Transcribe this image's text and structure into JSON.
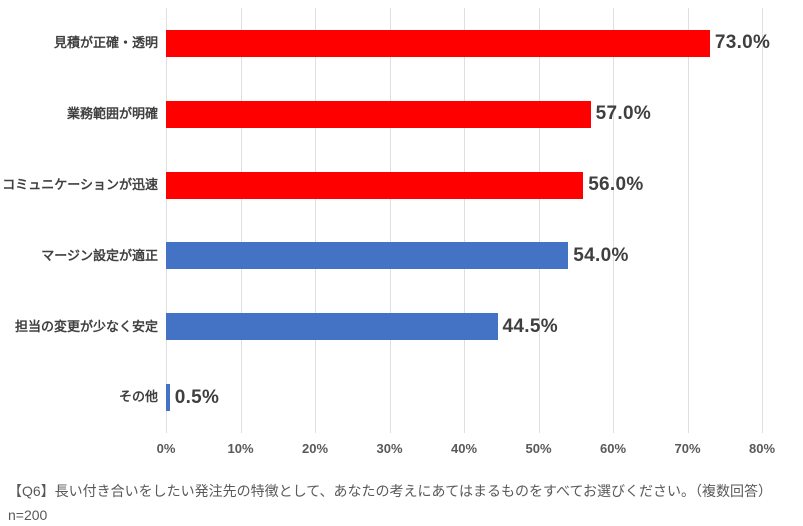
{
  "colors": {
    "bar_red": "#FF0000",
    "bar_blue": "#4472C4",
    "gridline": "#DFDFDF",
    "category_text": "#404040",
    "value_text": "#3F3F3F",
    "axis_text": "#595959",
    "caption_text": "#595959",
    "background": "#FFFFFF"
  },
  "chart_data": {
    "type": "bar",
    "orientation": "horizontal",
    "title": "",
    "xlabel": "",
    "ylabel": "",
    "xlim": [
      0,
      80
    ],
    "grid": true,
    "legend": "none",
    "x_ticks": [
      "0%",
      "10%",
      "20%",
      "30%",
      "40%",
      "50%",
      "60%",
      "70%",
      "80%"
    ],
    "categories": [
      "見積が正確・透明",
      "業務範囲が明確",
      "コミュニケーションが迅速",
      "マージン設定が適正",
      "担当の変更が少なく安定",
      "その他"
    ],
    "values": [
      73.0,
      57.0,
      56.0,
      54.0,
      44.5,
      0.5
    ],
    "value_labels": [
      "73.0%",
      "57.0%",
      "56.0%",
      "54.0%",
      "44.5%",
      "0.5%"
    ],
    "bar_colors": [
      "#FF0000",
      "#FF0000",
      "#FF0000",
      "#4472C4",
      "#4472C4",
      "#4472C4"
    ]
  },
  "caption": "【Q6】長い付き合いをしたい発注先の特徴として、あなたの考えにあてはまるものをすべてお選びください。（複数回答）n=200"
}
